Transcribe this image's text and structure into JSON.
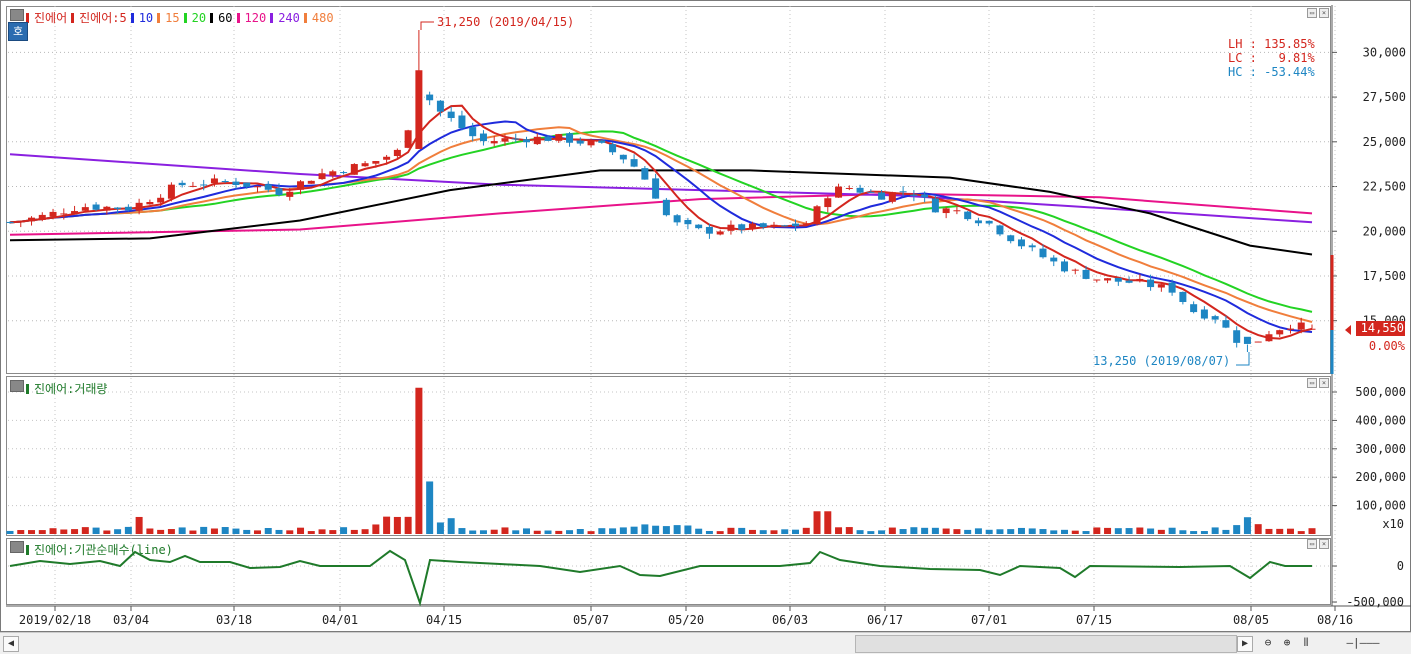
{
  "title_badge": "호",
  "price_legend": [
    {
      "label": "진에어",
      "color": "#d3261e"
    },
    {
      "label": "진에어:5",
      "color": "#d3261e"
    },
    {
      "label": "10",
      "color": "#1f2bdc"
    },
    {
      "label": "15",
      "color": "#f07e3c"
    },
    {
      "label": "20",
      "color": "#23d323"
    },
    {
      "label": "60",
      "color": "#000000"
    },
    {
      "label": "120",
      "color": "#e8138a"
    },
    {
      "label": "240",
      "color": "#8a20e0"
    },
    {
      "label": "480",
      "color": "#f07e3c"
    }
  ],
  "volume_legend": "진에어:거래량",
  "inst_legend": "진에어:기관순매수(line)",
  "stats": {
    "lh": "LH : 135.85%",
    "lc": "LC :   9.81%",
    "hc": "HC : -53.44%"
  },
  "high_annotation": "31,250 (2019/04/15)",
  "low_annotation": "13,250 (2019/08/07)",
  "current_price": "14,550",
  "current_change": "0.00%",
  "price_axis_labels": [
    "30,000",
    "27,500",
    "25,000",
    "22,500",
    "20,000",
    "17,500",
    "15,000"
  ],
  "volume_axis_labels": [
    "500,000",
    "400,000",
    "300,000",
    "200,000",
    "100,000"
  ],
  "volume_unit": "x10",
  "inst_axis_labels": [
    "0",
    "-500,000"
  ],
  "date_labels": [
    "2019/02/18",
    "03/04",
    "03/18",
    "04/01",
    "04/15",
    "05/07",
    "05/20",
    "06/03",
    "06/17",
    "07/01",
    "07/15",
    "08/05",
    "08/16"
  ],
  "colors": {
    "up": "#d3261e",
    "down": "#1e86c3",
    "inst": "#1f7a2a"
  },
  "chart_data": {
    "type": "candlestick",
    "x_dates": [
      "2019/02/18",
      "03/04",
      "03/18",
      "04/01",
      "04/15",
      "05/07",
      "05/20",
      "06/03",
      "06/17",
      "07/01",
      "07/15",
      "08/05",
      "08/16"
    ],
    "price_ylim": [
      13250,
      31250
    ],
    "price_key_points": [
      {
        "x": "2019/02/18",
        "close": 20500
      },
      {
        "x": "03/04",
        "close": 21300
      },
      {
        "x": "03/18",
        "close": 22800
      },
      {
        "x": "04/01",
        "close": 23200
      },
      {
        "x": "04/15",
        "high": 31250,
        "close": 28000
      },
      {
        "x": "05/07",
        "close": 25000
      },
      {
        "x": "05/20",
        "close": 20100
      },
      {
        "x": "06/03",
        "close": 20600
      },
      {
        "x": "06/17",
        "close": 22300
      },
      {
        "x": "07/01",
        "close": 20600
      },
      {
        "x": "07/15",
        "close": 17300
      },
      {
        "x": "08/05",
        "low": 13250,
        "close": 14000
      },
      {
        "x": "08/16",
        "close": 14550
      }
    ],
    "high": {
      "value": 31250,
      "date": "2019/04/15"
    },
    "low": {
      "value": 13250,
      "date": "2019/08/07"
    },
    "last_close": 14550,
    "volume_ylim": [
      0,
      500000
    ],
    "inst_ylim": [
      -500000,
      0
    ]
  }
}
